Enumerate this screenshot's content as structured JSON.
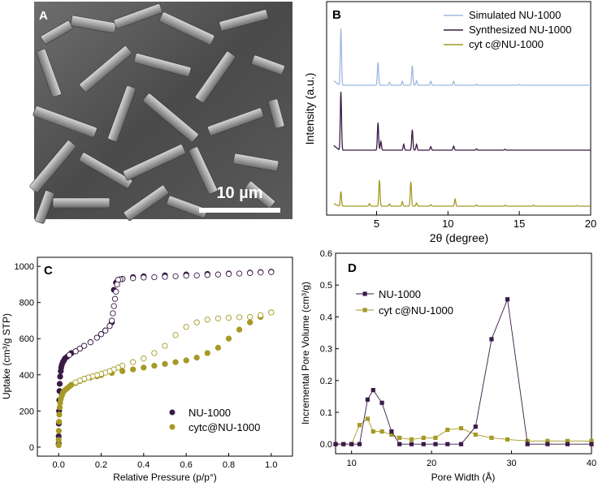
{
  "figure": "4-panel characterization of NU-1000 and cyt c@NU-1000",
  "panels": {
    "A": {
      "label": "A",
      "scale_bar": "10 µm",
      "image": "SEM micrograph of rod-shaped hexagonal NU-1000 crystals"
    },
    "B": {
      "label": "B"
    },
    "C": {
      "label": "C"
    },
    "D": {
      "label": "D"
    }
  },
  "colors": {
    "simulated": "#9db9df",
    "nu1000": "#3a1a47",
    "cytc": "#a59a24"
  },
  "chart_data": [
    {
      "panel": "B",
      "type": "line",
      "title": "",
      "xlabel": "2θ (degree)",
      "ylabel": "Intensity (a.u.)",
      "xlim": [
        1.5,
        20
      ],
      "xticks": [
        5,
        10,
        15,
        20
      ],
      "y_tick_labels": "none",
      "legend_position": "top-right",
      "series": [
        {
          "name": "Simulated NU-1000",
          "color": "#9db9df",
          "peaks": [
            [
              2.5,
              1.0
            ],
            [
              5.1,
              0.4
            ],
            [
              5.9,
              0.05
            ],
            [
              6.8,
              0.07
            ],
            [
              7.5,
              0.34
            ],
            [
              7.8,
              0.08
            ],
            [
              8.8,
              0.07
            ],
            [
              10.4,
              0.07
            ],
            [
              12.0,
              0.02
            ],
            [
              15.0,
              0.015
            ]
          ]
        },
        {
          "name": "Synthesized NU-1000",
          "color": "#3a1a47",
          "peaks": [
            [
              2.5,
              1.0
            ],
            [
              5.1,
              0.47
            ],
            [
              5.3,
              0.15
            ],
            [
              6.9,
              0.1
            ],
            [
              7.5,
              0.35
            ],
            [
              7.8,
              0.1
            ],
            [
              8.8,
              0.06
            ],
            [
              10.4,
              0.07
            ],
            [
              12.0,
              0.02
            ],
            [
              14.0,
              0.015
            ]
          ]
        },
        {
          "name": "cyt c@NU-1000",
          "color": "#a59a24",
          "peaks": [
            [
              2.5,
              0.45
            ],
            [
              4.5,
              0.08
            ],
            [
              5.2,
              0.8
            ],
            [
              5.9,
              0.07
            ],
            [
              6.8,
              0.14
            ],
            [
              7.4,
              0.75
            ],
            [
              7.8,
              0.1
            ],
            [
              8.8,
              0.05
            ],
            [
              10.5,
              0.22
            ],
            [
              12.0,
              0.04
            ],
            [
              14.0,
              0.03
            ],
            [
              16.0,
              0.03
            ],
            [
              19.0,
              0.02
            ]
          ]
        }
      ]
    },
    {
      "panel": "C",
      "type": "scatter",
      "title": "",
      "xlabel": "Relative Pressure (p/p°)",
      "ylabel": "Uptake (cm³/g STP)",
      "xlim": [
        -0.1,
        1.1
      ],
      "ylim": [
        -50,
        1050
      ],
      "xticks": [
        0.0,
        0.2,
        0.4,
        0.6,
        0.8,
        1.0
      ],
      "xtick_labels": [
        "0.0",
        "0.2",
        "0.4",
        "0.6",
        "0.8",
        "1.0"
      ],
      "yticks": [
        0,
        200,
        400,
        600,
        800,
        1000
      ],
      "legend_position": "bottom-right",
      "series": [
        {
          "name": "NU-1000",
          "color": "#3a1a47",
          "marker": "filled-circle",
          "x": [
            0.0,
            0.0,
            0.001,
            0.002,
            0.003,
            0.004,
            0.005,
            0.007,
            0.01,
            0.012,
            0.015,
            0.02,
            0.025,
            0.03,
            0.04,
            0.05,
            0.06,
            0.08,
            0.1,
            0.12,
            0.15,
            0.18,
            0.2,
            0.22,
            0.24,
            0.25,
            0.26,
            0.27,
            0.28,
            0.3,
            0.35,
            0.4,
            0.5,
            0.6,
            0.7,
            0.8,
            0.9,
            0.95,
            1.0
          ],
          "y": [
            20,
            60,
            130,
            200,
            260,
            310,
            350,
            390,
            420,
            440,
            455,
            470,
            480,
            490,
            500,
            510,
            520,
            530,
            545,
            560,
            580,
            605,
            625,
            645,
            670,
            690,
            870,
            910,
            925,
            930,
            940,
            945,
            950,
            955,
            958,
            960,
            965,
            968,
            970
          ]
        },
        {
          "name": "NU-1000 (desorption)",
          "color": "#3a1a47",
          "marker": "open-circle",
          "x": [
            1.0,
            0.95,
            0.9,
            0.85,
            0.8,
            0.75,
            0.7,
            0.65,
            0.6,
            0.55,
            0.5,
            0.45,
            0.4,
            0.35,
            0.3,
            0.29,
            0.28,
            0.275,
            0.27,
            0.265,
            0.26,
            0.255,
            0.25,
            0.24,
            0.22,
            0.2,
            0.18,
            0.15,
            0.12,
            0.1,
            0.08,
            0.05
          ],
          "y": [
            968,
            966,
            963,
            960,
            958,
            955,
            952,
            950,
            948,
            945,
            942,
            940,
            938,
            934,
            930,
            928,
            925,
            900,
            860,
            820,
            780,
            740,
            700,
            670,
            645,
            625,
            605,
            580,
            560,
            545,
            530,
            510
          ]
        },
        {
          "name": "cytc@NU-1000",
          "color": "#a59a24",
          "marker": "filled-circle",
          "x": [
            0.0,
            0.0,
            0.001,
            0.002,
            0.003,
            0.005,
            0.007,
            0.01,
            0.015,
            0.02,
            0.03,
            0.04,
            0.05,
            0.06,
            0.08,
            0.1,
            0.12,
            0.15,
            0.18,
            0.2,
            0.25,
            0.3,
            0.35,
            0.4,
            0.45,
            0.5,
            0.55,
            0.6,
            0.65,
            0.7,
            0.75,
            0.8,
            0.85,
            0.9,
            0.95,
            1.0
          ],
          "y": [
            10,
            40,
            90,
            140,
            180,
            220,
            245,
            265,
            285,
            300,
            315,
            325,
            335,
            345,
            355,
            365,
            375,
            385,
            392,
            398,
            410,
            420,
            430,
            440,
            450,
            460,
            470,
            480,
            495,
            520,
            550,
            600,
            650,
            690,
            720,
            745
          ]
        },
        {
          "name": "cytc@NU-1000 (desorption)",
          "color": "#a59a24",
          "marker": "open-circle",
          "x": [
            1.0,
            0.95,
            0.9,
            0.85,
            0.8,
            0.75,
            0.7,
            0.65,
            0.6,
            0.55,
            0.5,
            0.45,
            0.4,
            0.35,
            0.3,
            0.28,
            0.26,
            0.24,
            0.22,
            0.2,
            0.18,
            0.16,
            0.14,
            0.12,
            0.1,
            0.08
          ],
          "y": [
            745,
            730,
            720,
            718,
            715,
            712,
            705,
            690,
            665,
            620,
            560,
            520,
            490,
            470,
            450,
            440,
            430,
            420,
            412,
            405,
            398,
            392,
            385,
            378,
            368,
            358
          ]
        }
      ],
      "legend_entries": [
        {
          "name": "NU-1000",
          "color": "#3a1a47"
        },
        {
          "name": "cytc@NU-1000",
          "color": "#a59a24"
        }
      ]
    },
    {
      "panel": "D",
      "type": "line",
      "title": "",
      "xlabel": "Pore Width (Å)",
      "ylabel": "Incremental Pore Volume (cm³/g)",
      "xlim": [
        8,
        40
      ],
      "ylim": [
        -0.03,
        0.6
      ],
      "xticks": [
        10,
        20,
        30,
        40
      ],
      "yticks": [
        0.0,
        0.1,
        0.2,
        0.3,
        0.4,
        0.5,
        0.6
      ],
      "ytick_labels": [
        "0.0",
        "0.1",
        "0.2",
        "0.3",
        "0.4",
        "0.5",
        "0.6"
      ],
      "legend_position": "top-left",
      "series": [
        {
          "name": "NU-1000",
          "color": "#3a1a47",
          "marker": "square",
          "x": [
            8,
            9,
            10,
            11,
            12,
            12.7,
            13.8,
            15,
            16,
            17.5,
            19,
            20.5,
            22,
            23.7,
            25.5,
            27.5,
            29.5,
            32,
            34.5,
            37,
            40
          ],
          "y": [
            0.0,
            0.0,
            0.0,
            0.0,
            0.14,
            0.17,
            0.13,
            0.04,
            0.0,
            0.0,
            0.0,
            0.0,
            0.0,
            0.0,
            0.055,
            0.33,
            0.455,
            0.0,
            0.0,
            0.0,
            0.0
          ]
        },
        {
          "name": "cyt c@NU-1000",
          "color": "#a59a24",
          "marker": "square",
          "x": [
            8,
            9,
            10,
            11,
            12,
            12.7,
            13.8,
            15,
            16,
            17.5,
            19,
            20.5,
            22,
            23.7,
            25.5,
            27.5,
            29.5,
            32,
            34.5,
            37,
            40
          ],
          "y": [
            0.0,
            0.0,
            0.0,
            0.06,
            0.08,
            0.04,
            0.04,
            0.03,
            0.02,
            0.015,
            0.02,
            0.02,
            0.045,
            0.05,
            0.03,
            0.02,
            0.015,
            0.01,
            0.01,
            0.01,
            0.01
          ]
        }
      ]
    }
  ]
}
